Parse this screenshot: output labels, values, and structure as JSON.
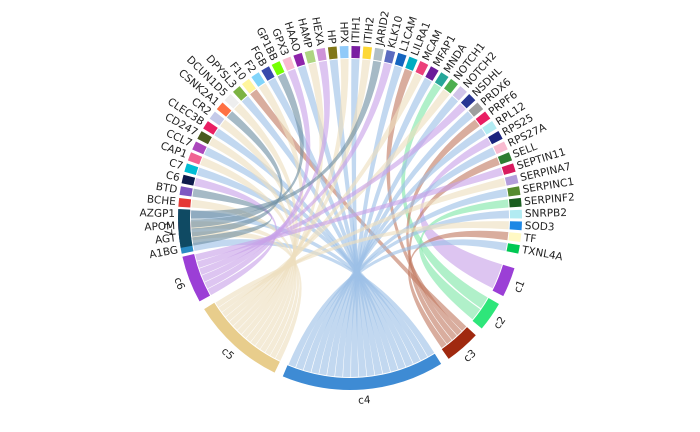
{
  "diagram": {
    "type": "chord",
    "genes": [
      {
        "label": "A1BG",
        "color": "#2B8CC4"
      },
      {
        "label": "AGT",
        "color": "#1A237E"
      },
      {
        "label": "APOM",
        "color": "#C2185B"
      },
      {
        "label": "AZGP1",
        "color": "#9C7BD6"
      },
      {
        "label": "BCHE",
        "color": "#E53935"
      },
      {
        "label": "BTD",
        "color": "#7E57C2"
      },
      {
        "label": "C6",
        "color": "#0D1B4C"
      },
      {
        "label": "C7",
        "color": "#00BCD4"
      },
      {
        "label": "CAP1",
        "color": "#F06292"
      },
      {
        "label": "CCL7",
        "color": "#AB47BC"
      },
      {
        "label": "CD247",
        "color": "#4A5A1E"
      },
      {
        "label": "CLEC3B",
        "color": "#E91E63"
      },
      {
        "label": "CR2",
        "color": "#C5CAE9"
      },
      {
        "label": "CSNK2A1",
        "color": "#FF7043"
      },
      {
        "label": "DCUN1D5",
        "color": "#EEEEEE"
      },
      {
        "label": "DPYSL3",
        "color": "#7CB342"
      },
      {
        "label": "F10",
        "color": "#FFF59D"
      },
      {
        "label": "F2",
        "color": "#81D4FA"
      },
      {
        "label": "FGB",
        "color": "#3949AB"
      },
      {
        "label": "GP1BB",
        "color": "#76FF03"
      },
      {
        "label": "GPX3",
        "color": "#F8BBD0"
      },
      {
        "label": "HAAO",
        "color": "#8E24AA"
      },
      {
        "label": "HAMP",
        "color": "#AED581"
      },
      {
        "label": "HEXA",
        "color": "#CE93D8"
      },
      {
        "label": "HP",
        "color": "#827717"
      },
      {
        "label": "HPX",
        "color": "#90CAF9"
      },
      {
        "label": "ITIH1",
        "color": "#7B1FA2"
      },
      {
        "label": "ITIH2",
        "color": "#FDD835"
      },
      {
        "label": "JARID2",
        "color": "#B0BEC5"
      },
      {
        "label": "KLK10",
        "color": "#5C6BC0"
      },
      {
        "label": "L1CAM",
        "color": "#1565C0"
      },
      {
        "label": "LILRA1",
        "color": "#00ACC1"
      },
      {
        "label": "MCAM",
        "color": "#EC407A"
      },
      {
        "label": "MFAP1",
        "color": "#6A1B9A"
      },
      {
        "label": "MNDA",
        "color": "#26A69A"
      },
      {
        "label": "NOTCH1",
        "color": "#4CAF50"
      },
      {
        "label": "NOTCH2",
        "color": "#D1C4E9"
      },
      {
        "label": "NSDHL",
        "color": "#283593"
      },
      {
        "label": "PRDX6",
        "color": "#9E9E9E"
      },
      {
        "label": "PRPF6",
        "color": "#E91E63"
      },
      {
        "label": "RPL12",
        "color": "#B2EBF2"
      },
      {
        "label": "RPS25",
        "color": "#1A237E"
      },
      {
        "label": "RPS27A",
        "color": "#F8BBD0"
      },
      {
        "label": "SELL",
        "color": "#2E7D32"
      },
      {
        "label": "SEPTIN11",
        "color": "#D81B60"
      },
      {
        "label": "SERPINA7",
        "color": "#B39DDB"
      },
      {
        "label": "SERPINC1",
        "color": "#558B2F"
      },
      {
        "label": "SERPINF2",
        "color": "#1B5E20"
      },
      {
        "label": "SNRPB2",
        "color": "#B2EBF2"
      },
      {
        "label": "SOD3",
        "color": "#1E88E5"
      },
      {
        "label": "TF",
        "color": "#FFF9C4"
      },
      {
        "label": "TXNL4A",
        "color": "#00C853"
      }
    ],
    "clusters": [
      {
        "label": "c1",
        "color": "#9B3FD6"
      },
      {
        "label": "c2",
        "color": "#2EE67A"
      },
      {
        "label": "c3",
        "color": "#A0290F"
      },
      {
        "label": "c4",
        "color": "#3E8BD4"
      },
      {
        "label": "c5",
        "color": "#E8CD8C"
      },
      {
        "label": "c6",
        "color": "#9B3FD6"
      },
      {
        "label": "c7",
        "color": "#0F4A63"
      }
    ]
  }
}
